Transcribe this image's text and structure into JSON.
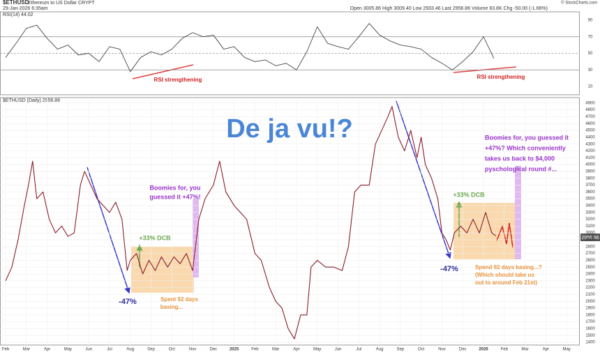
{
  "header": {
    "symbol": "$ETHUSD",
    "name": "Ethereum to US Dollar",
    "exchange": "CRYPT",
    "date": "29-Jan-2026 6:35am",
    "quote": "Open 3005.86  High 3009.40  Low 2933.46  Last 2956.86  Volume 83.8K  Chg -50.00 (-1.66%)",
    "credit": "© StockCharts.com",
    "last": "2956.86"
  },
  "chart_data": [
    {
      "type": "line",
      "title": "RSI(14) 44.02",
      "color": "#444444",
      "x": [
        0,
        0.5,
        1,
        1.5,
        2,
        2.5,
        3,
        3.5,
        4,
        4.5,
        5,
        5.5,
        6,
        6.5,
        7,
        7.5,
        8,
        8.5,
        9,
        9.5,
        10,
        10.5,
        11,
        11.5,
        12,
        12.5,
        13,
        13.5,
        14,
        14.5,
        15,
        15.5,
        16,
        16.5,
        17,
        17.5,
        18,
        18.5,
        19,
        19.5,
        20,
        20.5,
        21,
        21.5,
        22,
        22.5,
        23,
        23.5
      ],
      "values": [
        45,
        62,
        80,
        84,
        68,
        55,
        60,
        48,
        50,
        40,
        58,
        55,
        28,
        45,
        52,
        48,
        55,
        68,
        75,
        70,
        72,
        55,
        58,
        45,
        40,
        42,
        35,
        38,
        30,
        52,
        82,
        62,
        58,
        55,
        70,
        86,
        72,
        65,
        60,
        58,
        55,
        45,
        38,
        30,
        40,
        52,
        70,
        44
      ],
      "xlim": [
        -0.27,
        27.6
      ],
      "ylim": [
        0,
        100
      ],
      "yticks": [
        10,
        30,
        50,
        70,
        90
      ],
      "annotations": [
        "RSI strengthening",
        "RSI strengthening"
      ]
    },
    {
      "type": "line",
      "title": "$ETHUSD (Daily) 2956.86",
      "color": "#8b1a2b",
      "x": [
        0,
        0.3,
        0.6,
        0.9,
        1.1,
        1.3,
        1.5,
        1.8,
        2.1,
        2.4,
        2.7,
        3.0,
        3.3,
        3.6,
        3.8,
        4.1,
        4.4,
        4.7,
        5.0,
        5.3,
        5.6,
        5.85,
        6.0,
        6.3,
        6.6,
        6.9,
        7.2,
        7.5,
        7.8,
        8.1,
        8.4,
        8.7,
        9.0,
        9.3,
        9.6,
        10.0,
        10.3,
        10.6,
        11.0,
        11.3,
        11.6,
        12.0,
        12.3,
        12.7,
        13.0,
        13.3,
        13.6,
        13.9,
        14.2,
        14.5,
        14.7,
        15.0,
        15.4,
        15.8,
        16.2,
        16.5,
        16.8,
        17.1,
        17.5,
        17.8,
        18.1,
        18.4,
        18.6,
        18.9,
        19.2,
        19.5,
        19.8,
        20.0,
        20.2,
        20.5,
        20.8,
        21.0,
        21.2,
        21.4,
        21.6,
        21.9,
        22.2,
        22.5,
        22.8,
        23.1,
        23.4,
        23.6
      ],
      "values": [
        2300,
        2500,
        2900,
        3400,
        3700,
        4050,
        3500,
        3600,
        3200,
        3000,
        3100,
        2950,
        3000,
        3700,
        3900,
        3700,
        3500,
        3400,
        3300,
        3450,
        3200,
        2450,
        2600,
        2700,
        2400,
        2600,
        2450,
        2650,
        2500,
        2650,
        2550,
        2700,
        2450,
        3200,
        3500,
        3700,
        4050,
        3600,
        3400,
        3300,
        3200,
        2700,
        2600,
        2200,
        2000,
        1900,
        1600,
        1450,
        1800,
        1800,
        2500,
        2600,
        2500,
        2500,
        2450,
        2800,
        3600,
        3700,
        3700,
        4300,
        4500,
        4700,
        4850,
        4400,
        4200,
        4500,
        4100,
        4400,
        4000,
        3800,
        3500,
        3000,
        2900,
        2750,
        3000,
        3100,
        3000,
        3200,
        3000,
        3300,
        3000,
        2956.86
      ],
      "xlim": [
        -0.27,
        27.6
      ],
      "ylim": [
        1360,
        4980
      ],
      "yticks": [
        1400,
        1500,
        1600,
        1700,
        1800,
        1900,
        2000,
        2100,
        2200,
        2300,
        2400,
        2500,
        2600,
        2700,
        2800,
        2900,
        3000,
        3100,
        3200,
        3300,
        3400,
        3500,
        3600,
        3700,
        3800,
        3900,
        4000,
        4100,
        4200,
        4300,
        4400,
        4500,
        4600,
        4700,
        4800,
        4900
      ],
      "xticks": [
        {
          "value": 0,
          "label": "Feb"
        },
        {
          "value": 1,
          "label": "Mar"
        },
        {
          "value": 2,
          "label": "Apr"
        },
        {
          "value": 3,
          "label": "May"
        },
        {
          "value": 4,
          "label": "Jun"
        },
        {
          "value": 5,
          "label": "Jul"
        },
        {
          "value": 6,
          "label": "Aug"
        },
        {
          "value": 7,
          "label": "Sep"
        },
        {
          "value": 8,
          "label": "Oct"
        },
        {
          "value": 9,
          "label": "Nov"
        },
        {
          "value": 10,
          "label": "Dec"
        },
        {
          "value": 11,
          "label": "2025"
        },
        {
          "value": 12,
          "label": "Feb"
        },
        {
          "value": 13,
          "label": "Mar"
        },
        {
          "value": 14,
          "label": "Apr"
        },
        {
          "value": 15,
          "label": "May"
        },
        {
          "value": 16,
          "label": "Jun"
        },
        {
          "value": 17,
          "label": "Jul"
        },
        {
          "value": 18,
          "label": "Aug"
        },
        {
          "value": 19,
          "label": "Sep"
        },
        {
          "value": 20,
          "label": "Oct"
        },
        {
          "value": 21,
          "label": "Nov"
        },
        {
          "value": 22,
          "label": "Dec"
        },
        {
          "value": 23,
          "label": "2026"
        },
        {
          "value": 24,
          "label": "Feb"
        },
        {
          "value": 25,
          "label": "Mar"
        },
        {
          "value": 26,
          "label": "Apr"
        },
        {
          "value": 27,
          "label": "May"
        }
      ],
      "annotations": [
        "De ja vu!?",
        "-47%",
        "-47%",
        "+33% DCB",
        "+33% DCB",
        "Boomies for, you",
        "guessed it +47%!",
        "Boomies for, you guessed it",
        "+47%? Which conveniently",
        "takes us back to $4,000",
        "pyschological round #...",
        "Spent 92 days",
        "basing...",
        "Spend 92 days basing...?",
        "(Which should take us",
        "out to around Feb 21st)"
      ]
    }
  ]
}
